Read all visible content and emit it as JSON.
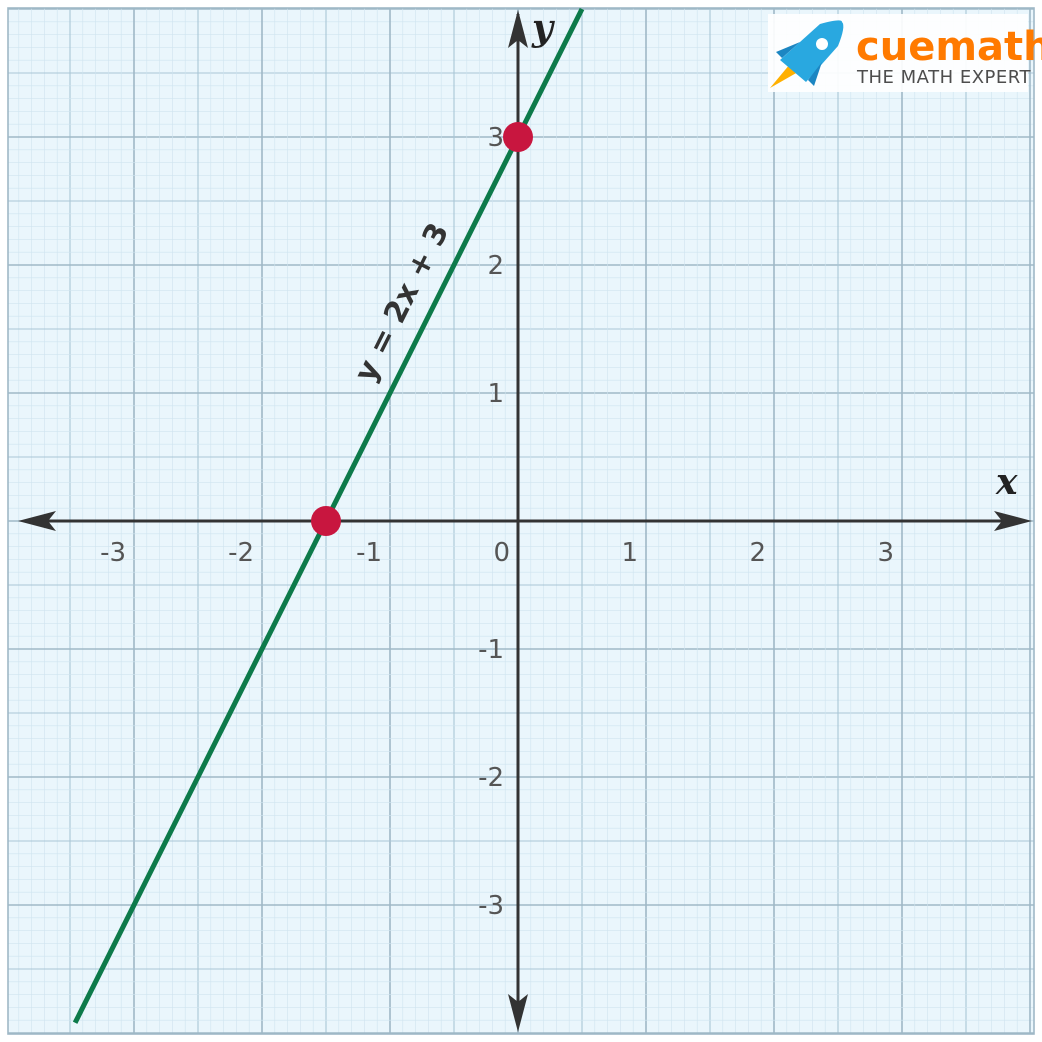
{
  "chart_data": {
    "type": "line",
    "title": "",
    "xlabel": "x",
    "ylabel": "y",
    "xlim": [
      -4,
      4
    ],
    "ylim": [
      -4,
      4
    ],
    "grid": true,
    "x_ticks": [
      "-3",
      "-2",
      "-1",
      "0",
      "1",
      "2",
      "3"
    ],
    "x_tick_values": [
      -3,
      -2,
      -1,
      0,
      1,
      2,
      3
    ],
    "y_ticks": [
      "3",
      "2",
      "1",
      "-1",
      "-2",
      "-3"
    ],
    "y_tick_values": [
      3,
      2,
      1,
      -1,
      -2,
      -3
    ],
    "series": [
      {
        "name": "y = 2x + 3",
        "color": "#0d7a4a",
        "slope": 2,
        "intercept": 3,
        "x": [
          -3.46,
          0.5
        ],
        "y": [
          -3.92,
          4
        ]
      }
    ],
    "points": [
      {
        "x": 0,
        "y": 3,
        "color": "#c8163f"
      },
      {
        "x": -1.5,
        "y": 0,
        "color": "#c8163f"
      }
    ],
    "annotations": [
      {
        "text": "y = 2x + 3"
      }
    ]
  },
  "logo": {
    "word": "cuemath",
    "tagline": "THE MATH EXPERT",
    "icon": "rocket-icon"
  }
}
